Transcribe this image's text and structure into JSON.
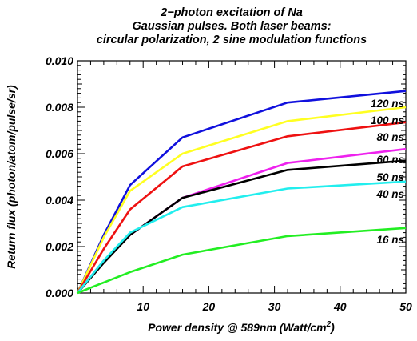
{
  "chart_data": {
    "type": "line",
    "title_lines": [
      "2−photon excitation of Na",
      "Gaussian pulses. Both laser beams:",
      "circular polarization, 2 sine modulation functions"
    ],
    "xlabel": "Power density @ 589nm (Watt/cm",
    "xlabel_sup": "2",
    "xlabel_close": ")",
    "ylabel": "Return flux (photon/atom/pulse/sr)",
    "xlim": [
      0,
      50
    ],
    "ylim": [
      0,
      0.01
    ],
    "x_ticks": [
      "10",
      "20",
      "30",
      "40",
      "50"
    ],
    "y_ticks": [
      "0.000",
      "0.002",
      "0.004",
      "0.006",
      "0.008",
      "0.010"
    ],
    "grid": false,
    "series": [
      {
        "name": "120 ns",
        "color": "#1010dd",
        "x": [
          0,
          4,
          8,
          16,
          32,
          50
        ],
        "y": [
          0,
          0.0025,
          0.00465,
          0.0067,
          0.0082,
          0.0087
        ]
      },
      {
        "name": "100 ns",
        "color": "#ffff22",
        "x": [
          0,
          4,
          8,
          16,
          32,
          50
        ],
        "y": [
          0,
          0.0024,
          0.0044,
          0.006,
          0.0074,
          0.008
        ]
      },
      {
        "name": "80 ns",
        "color": "#ee1111",
        "x": [
          0,
          4,
          8,
          16,
          32,
          50
        ],
        "y": [
          0,
          0.0019,
          0.0036,
          0.00545,
          0.00675,
          0.00735
        ]
      },
      {
        "name": "60 ns",
        "color": "#ee22ee",
        "x": [
          0,
          4,
          8,
          16,
          32,
          50
        ],
        "y": [
          0,
          0.0014,
          0.0025,
          0.0041,
          0.0056,
          0.0062
        ]
      },
      {
        "name": "50 ns",
        "color": "#000000",
        "x": [
          0,
          4,
          8,
          16,
          32,
          50
        ],
        "y": [
          0,
          0.0013,
          0.0025,
          0.0041,
          0.0053,
          0.0057
        ]
      },
      {
        "name": "40 ns",
        "color": "#22eeee",
        "x": [
          0,
          4,
          8,
          16,
          32,
          50
        ],
        "y": [
          0,
          0.0014,
          0.0026,
          0.0037,
          0.0045,
          0.0048
        ]
      },
      {
        "name": "16 ns",
        "color": "#22ee22",
        "x": [
          0,
          4,
          8,
          16,
          32,
          50
        ],
        "y": [
          0,
          0.00045,
          0.0009,
          0.00165,
          0.00245,
          0.0028
        ]
      }
    ]
  }
}
